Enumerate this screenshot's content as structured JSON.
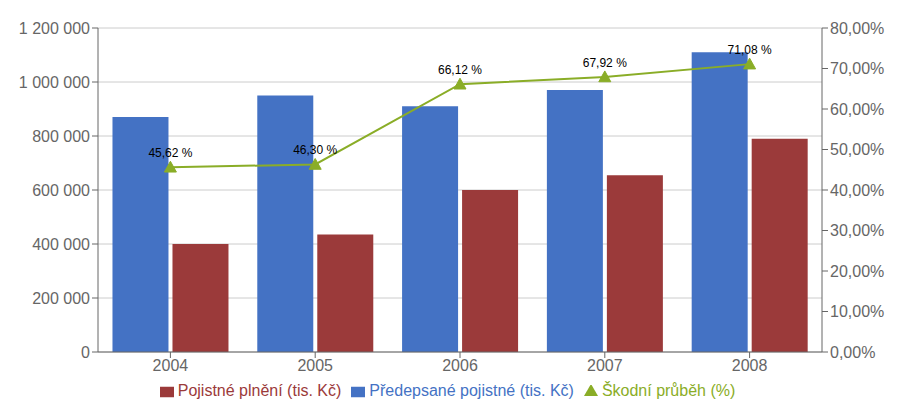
{
  "chart_data": {
    "type": "bar",
    "categories": [
      "2004",
      "2005",
      "2006",
      "2007",
      "2008"
    ],
    "series": [
      {
        "name": "Předepsané pojistné (tis. Kč)",
        "color": "#4472C4",
        "values": [
          870000,
          950000,
          910000,
          970000,
          1110000
        ]
      },
      {
        "name": "Pojistné plnění (tis. Kč)",
        "color": "#9B3A3A",
        "values": [
          400000,
          435000,
          600000,
          655000,
          790000
        ]
      },
      {
        "name": "Škodní průběh (%)",
        "type": "line",
        "axis": "y2",
        "color": "#8AAD27",
        "marker": "triangle",
        "values": [
          45.62,
          46.3,
          66.12,
          67.92,
          71.08
        ],
        "data_labels": true,
        "value_labels": [
          "45,62 %",
          "46,30 %",
          "66,12 %",
          "67,92 %",
          "71,08 %"
        ]
      }
    ],
    "ylim": [
      0,
      1200000
    ],
    "yticks": [
      0,
      {
        "value": 200000,
        "label": "200 000"
      },
      {
        "value": 400000,
        "label": "400 000"
      },
      {
        "value": 600000,
        "label": "600 000"
      },
      {
        "value": 800000,
        "label": "800 000"
      },
      {
        "value": 1000000,
        "label": "1 000 000"
      },
      {
        "value": 1200000,
        "label": "1 200 000"
      }
    ],
    "y2lim": [
      0,
      80
    ],
    "y2ticks": [
      {
        "value": 0,
        "label": "0,00%"
      },
      {
        "value": 10,
        "label": "10,00%"
      },
      {
        "value": 20,
        "label": "20,00%"
      },
      {
        "value": 30,
        "label": "30,00%"
      },
      {
        "value": 40,
        "label": "40,00%"
      },
      {
        "value": 50,
        "label": "50,00%"
      },
      {
        "value": 60,
        "label": "60,00%"
      },
      {
        "value": 70,
        "label": "70,00%"
      },
      {
        "value": 80,
        "label": "80,00%"
      }
    ],
    "grid": true,
    "legend": "bottom"
  }
}
